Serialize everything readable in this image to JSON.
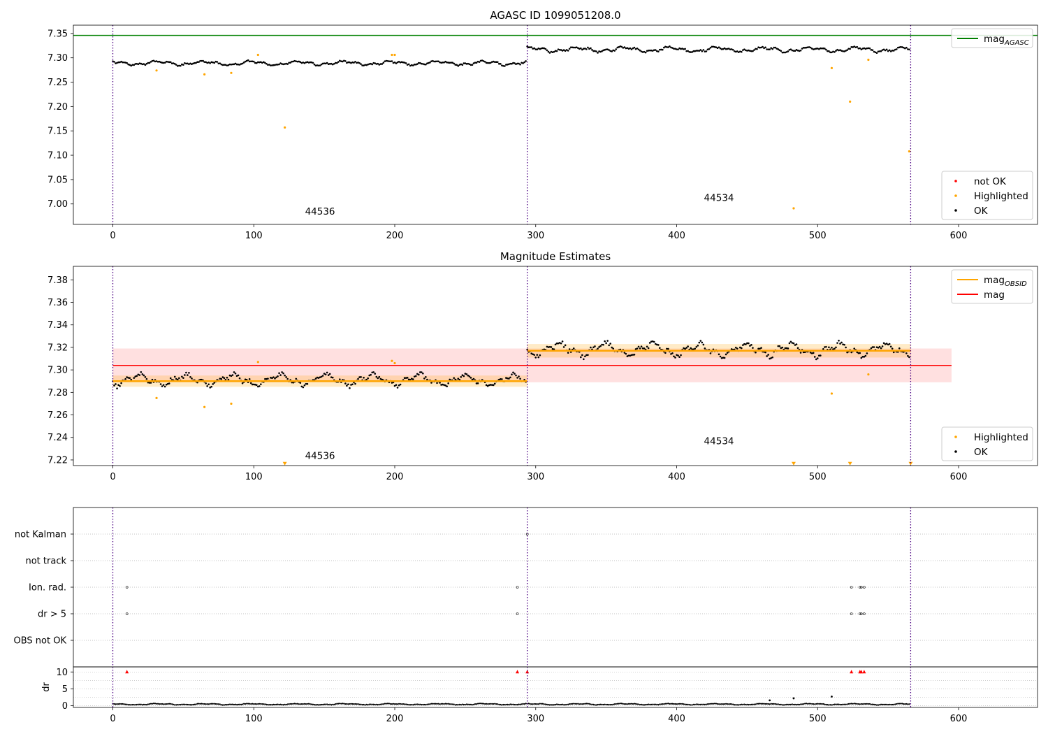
{
  "chart_data": [
    {
      "type": "scatter",
      "title": "AGASC ID 1099051208.0",
      "xlim": [
        -28,
        656
      ],
      "ylim": [
        6.958,
        7.367
      ],
      "xticks": [
        0,
        100,
        200,
        300,
        400,
        500,
        600
      ],
      "yticks": [
        7.0,
        7.05,
        7.1,
        7.15,
        7.2,
        7.25,
        7.3,
        7.35
      ],
      "ytick_decimals": 2,
      "vlines": [
        0,
        294,
        566
      ],
      "hlines": [
        {
          "name": "mag_AGASC",
          "y": 7.346,
          "color": "#008000"
        }
      ],
      "obsid_labels": [
        {
          "text": "44536",
          "x": 147,
          "y": 6.978
        },
        {
          "text": "44534",
          "x": 430,
          "y": 7.006
        }
      ],
      "ok_series": {
        "name": "OK",
        "color": "#000000",
        "n": 566,
        "break_at": 294,
        "segments": [
          {
            "mean": 7.289,
            "amp": 0.006
          },
          {
            "mean": 7.317,
            "amp": 0.007
          }
        ]
      },
      "highlighted": {
        "name": "Highlighted",
        "color": "#ffa500",
        "x": [
          31,
          65,
          84,
          103,
          122,
          198,
          200,
          483,
          510,
          523,
          536,
          565
        ],
        "y": [
          7.274,
          7.266,
          7.269,
          7.306,
          7.157,
          7.306,
          7.306,
          6.991,
          7.279,
          7.21,
          7.296,
          7.108
        ]
      },
      "not_ok": {
        "name": "not OK",
        "color": "#ff0000",
        "x": [],
        "y": []
      },
      "legends": [
        {
          "position": "top-right",
          "entries": [
            {
              "label": "mag",
              "sub": "AGASC",
              "kind": "line",
              "color": "#008000"
            }
          ]
        },
        {
          "position": "lower-right",
          "entries": [
            {
              "label": "not OK",
              "kind": "dot",
              "color": "#ff0000"
            },
            {
              "label": "Highlighted",
              "kind": "dot",
              "color": "#ffa500"
            },
            {
              "label": "OK",
              "kind": "dot",
              "color": "#000000"
            }
          ]
        }
      ]
    },
    {
      "type": "scatter",
      "title": "Magnitude Estimates",
      "xlim": [
        -28,
        656
      ],
      "ylim": [
        7.215,
        7.392
      ],
      "xticks": [
        0,
        100,
        200,
        300,
        400,
        500,
        600
      ],
      "yticks": [
        7.22,
        7.24,
        7.26,
        7.28,
        7.3,
        7.32,
        7.34,
        7.36,
        7.38
      ],
      "ytick_decimals": 2,
      "vlines": [
        0,
        294,
        566
      ],
      "obsid_labels": [
        {
          "text": "44536",
          "x": 147,
          "y": 7.221
        },
        {
          "text": "44534",
          "x": 430,
          "y": 7.234
        }
      ],
      "mag_band": {
        "name": "mag",
        "y": 7.304,
        "lo": 7.289,
        "hi": 7.319,
        "x0": 0,
        "x1": 595,
        "color": "#ff0000"
      },
      "obsid_mag": [
        {
          "x0": 0,
          "x1": 294,
          "y": 7.29,
          "lo": 7.285,
          "hi": 7.295
        },
        {
          "x0": 294,
          "x1": 566,
          "y": 7.317,
          "lo": 7.311,
          "hi": 7.323
        }
      ],
      "ok_series": {
        "name": "OK",
        "color": "#000000",
        "n": 566,
        "break_at": 294,
        "segments": [
          {
            "mean": 7.291,
            "amp": 0.007
          },
          {
            "mean": 7.318,
            "amp": 0.008
          }
        ]
      },
      "highlighted": {
        "name": "Highlighted",
        "color": "#ffa500",
        "x": [
          31,
          65,
          84,
          103,
          198,
          200,
          510,
          536
        ],
        "y": [
          7.275,
          7.267,
          7.27,
          7.307,
          7.308,
          7.306,
          7.279,
          7.296
        ]
      },
      "offscale": {
        "x": [
          122,
          483,
          523,
          566
        ],
        "y": 7.217
      },
      "legends": [
        {
          "position": "top-right",
          "entries": [
            {
              "label": "mag",
              "sub": "OBSID",
              "kind": "line",
              "color": "#ffa500"
            },
            {
              "label": "mag",
              "sub": "",
              "kind": "line",
              "color": "#ff0000"
            }
          ]
        },
        {
          "position": "lower-right",
          "entries": [
            {
              "label": "Highlighted",
              "kind": "dot",
              "color": "#ffa500"
            },
            {
              "label": "OK",
              "kind": "dot",
              "color": "#000000"
            }
          ]
        }
      ]
    },
    {
      "type": "scatter",
      "title": "",
      "xlim": [
        -28,
        656
      ],
      "xticks": [
        0,
        100,
        200,
        300,
        400,
        500,
        600
      ],
      "vlines": [
        0,
        294,
        566
      ],
      "flag_rows": [
        {
          "label": "not Kalman",
          "x": [
            294
          ]
        },
        {
          "label": "not track",
          "x": []
        },
        {
          "label": "Ion. rad.",
          "x": [
            10,
            287,
            524,
            530,
            531,
            533
          ]
        },
        {
          "label": "dr > 5",
          "x": [
            10,
            287,
            524,
            530,
            531,
            533
          ]
        },
        {
          "label": "OBS not OK",
          "x": []
        }
      ],
      "dr": {
        "ylabel": "dr",
        "ylim": [
          -0.5,
          11.5
        ],
        "yticks": [
          0,
          5,
          10
        ],
        "cap": 10,
        "capped_x": [
          10,
          287,
          294,
          524,
          530,
          531,
          533
        ],
        "outliers": [
          {
            "x": 466,
            "y": 1.6
          },
          {
            "x": 483,
            "y": 2.2
          },
          {
            "x": 510,
            "y": 2.7
          }
        ],
        "n": 566,
        "mean": 0.45
      }
    }
  ]
}
